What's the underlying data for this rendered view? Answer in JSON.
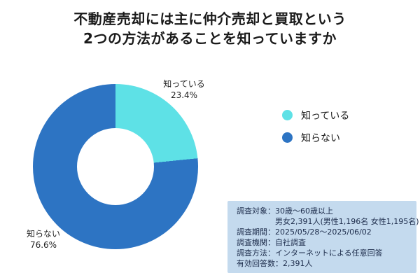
{
  "title": {
    "line1": "不動産売却には主に仲介売却と買取という",
    "line2": "2つの方法があることを知っていますか"
  },
  "chart_data": {
    "type": "pie",
    "subtype": "donut",
    "title": "不動産売却には主に仲介売却と買取という2つの方法があることを知っていますか",
    "start_angle_deg": 0,
    "direction": "clockwise",
    "hole_ratio": 0.47,
    "legend_position": "right",
    "segments": [
      {
        "label": "知っている",
        "value": 23.4,
        "percent_label": "23.4%",
        "color": "#5ee1e6"
      },
      {
        "label": "知らない",
        "value": 76.6,
        "percent_label": "76.6%",
        "color": "#2d74c3"
      }
    ]
  },
  "info_box": {
    "background": "#c4daee",
    "lines": [
      {
        "text": "調査対象：30歳〜60歳以上",
        "indent": false
      },
      {
        "text": "男女2,391人(男性1,196名 女性1,195名)",
        "indent": true
      },
      {
        "text": "調査期間：2025/05/28〜2025/06/02",
        "indent": false
      },
      {
        "text": "調査機関：自社調査",
        "indent": false
      },
      {
        "text": "調査方法：インターネットによる任意回答",
        "indent": false
      },
      {
        "text": "有効回答数：2,391人",
        "indent": false
      }
    ]
  }
}
